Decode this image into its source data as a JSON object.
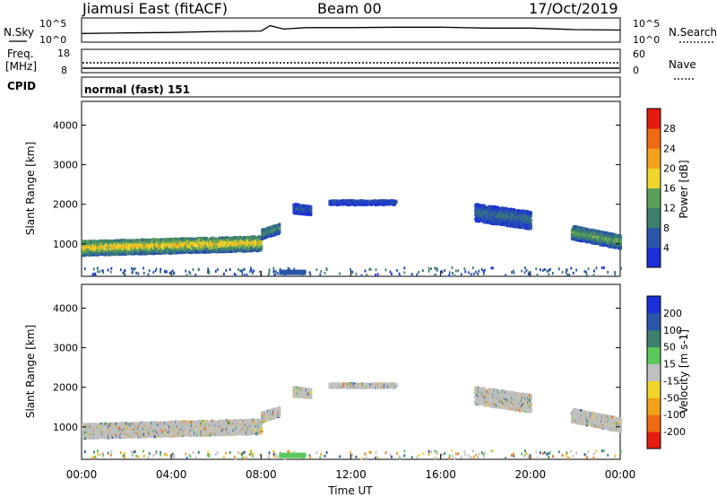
{
  "header": {
    "station": "Jiamusi East (fitACF)",
    "beam": "Beam 00",
    "date": "17/Oct/2019",
    "cpid_label": "CPID",
    "program": "normal (fast) 151"
  },
  "noise_panel": {
    "left_label": "N.Sky",
    "right_label": "N.Search",
    "left_ticks": [
      "10^5",
      "10^0"
    ],
    "right_ticks": [
      "10^5",
      "10^0"
    ]
  },
  "freq_panel": {
    "left_label_line1": "Freq.",
    "left_label_line2": "[MHz]",
    "right_label": "Nave",
    "left_ticks": [
      "18",
      "8"
    ],
    "right_ticks": [
      "60",
      "0"
    ]
  },
  "colors": {
    "power_scale": [
      "#1a2fd8",
      "#2a55a8",
      "#3d7f6e",
      "#5aa05a",
      "#f0d52a",
      "#f2a218",
      "#ef6a12",
      "#e51b10"
    ],
    "velocity_scale": [
      "#e51b10",
      "#ef6a12",
      "#f2a218",
      "#f0d52a",
      "#c0c0c0",
      "#5ac85a",
      "#3d7f6e",
      "#2a55a8",
      "#1a2fd8"
    ],
    "ground_scatter": "#c0c0c0"
  },
  "chart_data": [
    {
      "type": "heatmap",
      "name": "power",
      "ylabel": "Slant Range [km]",
      "ylim": [
        180,
        4600
      ],
      "yticks": [
        "1000",
        "2000",
        "3000",
        "4000"
      ],
      "xlim": [
        0,
        24
      ],
      "colorbar_label": "Power [dB]",
      "colorbar_ticks": [
        "4",
        "8",
        "12",
        "16",
        "20",
        "24",
        "28"
      ],
      "colorbar_range": [
        0,
        32
      ],
      "echo_regions": [
        {
          "t0": 0.0,
          "t1": 8.0,
          "r_start": 900,
          "r_end": 1020,
          "width": 380,
          "level": 17
        },
        {
          "t0": 8.0,
          "t1": 8.8,
          "r_start": 1250,
          "r_end": 1400,
          "width": 250,
          "level": 10
        },
        {
          "t0": 9.4,
          "t1": 10.2,
          "r_start": 1900,
          "r_end": 1850,
          "width": 250,
          "level": 5
        },
        {
          "t0": 11.0,
          "t1": 14.0,
          "r_start": 2050,
          "r_end": 2050,
          "width": 120,
          "level": 5
        },
        {
          "t0": 17.5,
          "t1": 20.0,
          "r_start": 1800,
          "r_end": 1600,
          "width": 450,
          "level": 7
        },
        {
          "t0": 21.8,
          "t1": 24.0,
          "r_start": 1300,
          "r_end": 1050,
          "width": 350,
          "level": 12
        }
      ],
      "near_range_band": {
        "t0": 8.8,
        "t1": 10.0,
        "r": 280,
        "level": 6
      }
    },
    {
      "type": "heatmap",
      "name": "velocity",
      "ylabel": "Slant Range [km]",
      "xlabel": "Time UT",
      "ylim": [
        180,
        4600
      ],
      "yticks": [
        "1000",
        "2000",
        "3000",
        "4000"
      ],
      "xlim": [
        0,
        24
      ],
      "xticks": [
        "00:00",
        "04:00",
        "08:00",
        "12:00",
        "16:00",
        "20:00",
        "00:00"
      ],
      "colorbar_label": "Velocity [m s-1]",
      "colorbar_ticks": [
        "200",
        "100",
        "50",
        "15",
        "-15",
        "-50",
        "-100",
        "-200"
      ],
      "near_range_band": {
        "t0": 8.8,
        "t1": 10.0,
        "r": 280,
        "velocity": 30
      }
    },
    {
      "type": "line",
      "name": "noise",
      "x": [
        0.0,
        2.0,
        4.0,
        6.0,
        8.0,
        8.4,
        9.0,
        10.0,
        12.0,
        14.0,
        16.0,
        18.0,
        20.0,
        22.0,
        24.0
      ],
      "y_log10": [
        1.8,
        1.9,
        2.0,
        2.2,
        2.3,
        3.4,
        2.7,
        3.0,
        3.0,
        3.1,
        3.1,
        2.9,
        2.9,
        2.6,
        2.5
      ]
    }
  ]
}
